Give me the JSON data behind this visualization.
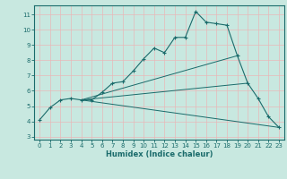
{
  "xlabel": "Humidex (Indice chaleur)",
  "bg_color": "#c8e8e0",
  "grid_color": "#b0d8d0",
  "line_color": "#1a6b6b",
  "xlim": [
    -0.5,
    23.5
  ],
  "ylim": [
    2.8,
    11.6
  ],
  "yticks": [
    3,
    4,
    5,
    6,
    7,
    8,
    9,
    10,
    11
  ],
  "xticks": [
    0,
    1,
    2,
    3,
    4,
    5,
    6,
    7,
    8,
    9,
    10,
    11,
    12,
    13,
    14,
    15,
    16,
    17,
    18,
    19,
    20,
    21,
    22,
    23
  ],
  "main_line": {
    "x": [
      0,
      1,
      2,
      3,
      4,
      5,
      6,
      7,
      8,
      9,
      10,
      11,
      12,
      13,
      14,
      15,
      16,
      17,
      18,
      19,
      20,
      21,
      22,
      23
    ],
    "y": [
      4.1,
      4.9,
      5.4,
      5.5,
      5.4,
      5.4,
      5.9,
      6.5,
      6.6,
      7.3,
      8.1,
      8.8,
      8.5,
      9.5,
      9.5,
      11.2,
      10.5,
      10.4,
      10.3,
      8.3,
      6.5,
      5.5,
      4.3,
      3.6
    ]
  },
  "line2_x": [
    4,
    19
  ],
  "line2_y": [
    5.4,
    8.3
  ],
  "line3_x": [
    4,
    20
  ],
  "line3_y": [
    5.4,
    6.5
  ],
  "line4_x": [
    4,
    23
  ],
  "line4_y": [
    5.4,
    3.6
  ]
}
